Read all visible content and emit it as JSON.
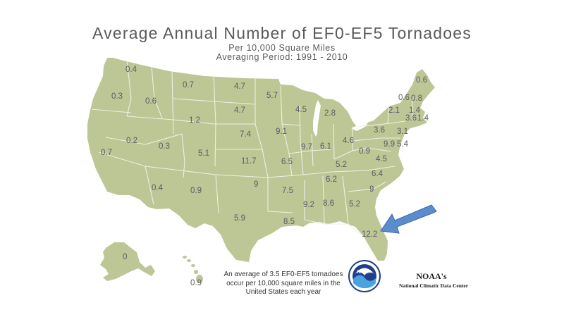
{
  "title": "Average Annual Number of EF0-EF5 Tornadoes",
  "subtitle_1": "Per 10,000 Square Miles",
  "subtitle_2": "Averaging Period:  1991 - 2010",
  "footnote": "An average of 3.5 EF0-EF5 tornadoes occur per 10,000 square miles in the United States each year",
  "logo_text": "NOAA",
  "noaa_title": "NOAA's",
  "noaa_subtitle": "National Climatic Data Center",
  "colors": {
    "land": "#bdc695",
    "border": "#eef0e2",
    "arrow": "#5b8ccc",
    "arrow_outline": "#3d68a8",
    "text": "#5b5b66"
  },
  "states": {
    "WA": "0.4",
    "OR": "0.3",
    "ID": "0.6",
    "MT": "0.7",
    "ND": "4.7",
    "MN": "5.7",
    "SD": "4.7",
    "WY": "1.2",
    "NE": "7.4",
    "IA": "9.1",
    "WI": "4.5",
    "MI": "2.8",
    "CA": "0.7",
    "NV": "0.2",
    "UT": "0.3",
    "CO": "5.1",
    "KS": "11.7",
    "MO": "6.5",
    "IL": "9.7",
    "IN": "6.1",
    "OH": "4.6",
    "PA": "3.6",
    "NY": "2.1",
    "ME": "0.6",
    "VT": "0.6",
    "NH": "0.8",
    "MA": "1.4",
    "CT": "3.6",
    "RI": "1.4",
    "NJ": "3.1",
    "DE": "9.9",
    "MD": "5.4",
    "WV": "0.9",
    "VA": "4.5",
    "KY": "5.2",
    "TN": "6.2",
    "NC": "6.4",
    "SC": "9",
    "AZ": "0.4",
    "NM": "0.9",
    "OK": "9",
    "AR": "7.5",
    "TX": "5.9",
    "LA": "8.5",
    "MS": "9.2",
    "AL": "8.6",
    "GA": "5.2",
    "FL": "12.2",
    "AK": "0",
    "HI": "0.9"
  }
}
